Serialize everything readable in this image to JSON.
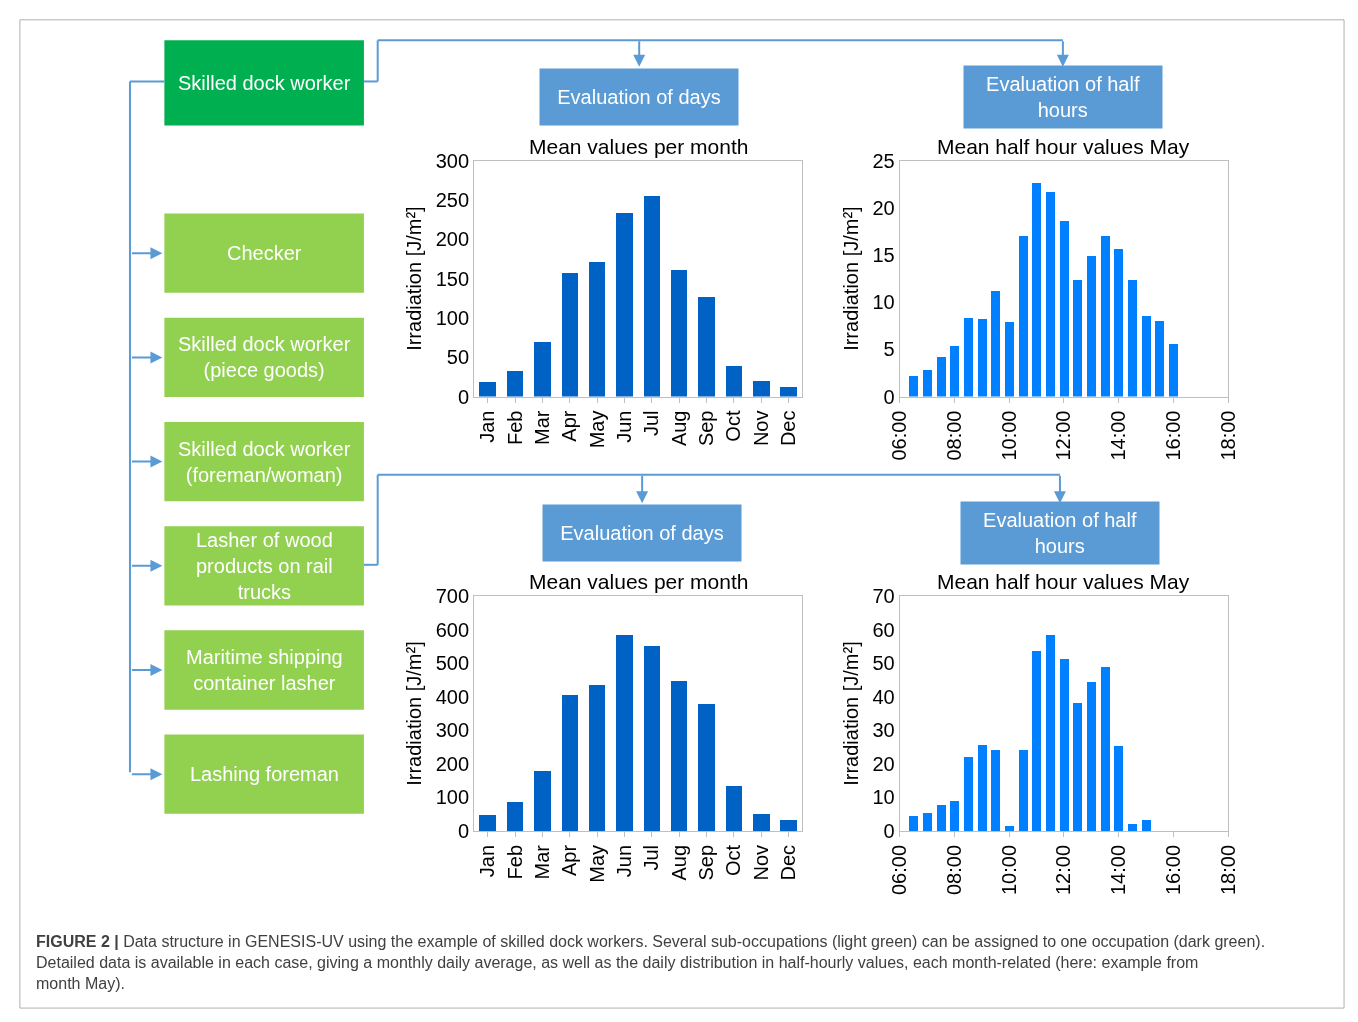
{
  "chart_data": [
    {
      "type": "other",
      "annotations": [
        "Skilled dock worker",
        "Checker",
        "Skilled dock worker (piece goods)",
        "Skilled dock worker (foreman/woman)",
        "Lasher of wood products on rail trucks",
        "Maritime shipping container lasher",
        "Lashing foreman",
        "FIGURE 2 |",
        "Data structure in GENESIS-UV using the example of skilled dock workers. Several sub-occupations (light green) can be assigned to one occupation (dark green). Detailed data is available in each case, giving a monthly daily average, as well as the daily distribution in half-hourly values, each month-related (here: example from month May)."
      ]
    },
    {
      "type": "bar",
      "subtitle": "Evaluation of days",
      "title": "Mean values per month",
      "ylabel": "Irradiation [J/m²]",
      "color": "#0062c4",
      "categories": [
        "Jan",
        "Feb",
        "Mar",
        "Apr",
        "May",
        "Jun",
        "Jul",
        "Aug",
        "Sep",
        "Oct",
        "Nov",
        "Dec"
      ],
      "values": [
        19,
        33,
        70,
        158,
        172,
        234,
        255,
        161,
        127,
        39,
        20,
        13
      ],
      "ylim": [
        0,
        300
      ],
      "yticks": [
        0,
        50,
        100,
        150,
        200,
        250,
        300
      ],
      "grid": false
    },
    {
      "type": "bar",
      "subtitle": "Evaluation of half hours",
      "title": "Mean half hour values May",
      "ylabel": "Irradiation [J/m²]",
      "color": "#0080ff",
      "x": [
        6.5,
        7,
        7.5,
        8,
        8.5,
        9,
        9.5,
        10,
        10.5,
        11,
        11.5,
        12,
        12.5,
        13,
        13.5,
        14,
        14.5,
        15,
        15.5,
        16
      ],
      "values": [
        2.2,
        2.8,
        4.2,
        5.4,
        8.4,
        8.3,
        11.2,
        7.9,
        17,
        22.7,
        21.7,
        18.6,
        12.4,
        14.9,
        17.1,
        15.7,
        12.4,
        8.6,
        8.0,
        5.6
      ],
      "xlim": [
        6,
        18
      ],
      "xticks": [
        {
          "value": 6,
          "label": "06:00"
        },
        {
          "value": 8,
          "label": "08:00"
        },
        {
          "value": 10,
          "label": "10:00"
        },
        {
          "value": 12,
          "label": "12:00"
        },
        {
          "value": 14,
          "label": "14:00"
        },
        {
          "value": 16,
          "label": "16:00"
        },
        {
          "value": 18,
          "label": "18:00"
        }
      ],
      "ylim": [
        0,
        25
      ],
      "yticks": [
        0,
        5,
        10,
        15,
        20,
        25
      ],
      "grid": false
    },
    {
      "type": "bar",
      "subtitle": "Evaluation of days",
      "title": "Mean values per month",
      "ylabel": "Irradiation [J/m²]",
      "color": "#0062c4",
      "categories": [
        "Jan",
        "Feb",
        "Mar",
        "Apr",
        "May",
        "Jun",
        "Jul",
        "Aug",
        "Sep",
        "Oct",
        "Nov",
        "Dec"
      ],
      "values": [
        48,
        85,
        178,
        405,
        436,
        584,
        551,
        448,
        379,
        133,
        51,
        32
      ],
      "ylim": [
        0,
        700
      ],
      "yticks": [
        0,
        100,
        200,
        300,
        400,
        500,
        600,
        700
      ],
      "grid": false
    },
    {
      "type": "bar",
      "subtitle": "Evaluation of half hours",
      "title": "Mean half hour values May",
      "ylabel": "Irradiation [J/m²]",
      "color": "#0080ff",
      "x": [
        6.5,
        7,
        7.5,
        8,
        8.5,
        9,
        9.5,
        10,
        10.5,
        11,
        11.5,
        12,
        12.5,
        13,
        13.5,
        14,
        14.5,
        15
      ],
      "values": [
        4.5,
        5.4,
        7.6,
        8.9,
        22,
        25.5,
        24.2,
        1.3,
        24.2,
        53.6,
        58.4,
        51.2,
        38,
        44.4,
        48.7,
        25.4,
        2.1,
        3.1
      ],
      "xlim": [
        6,
        18
      ],
      "xticks": [
        {
          "value": 6,
          "label": "06:00"
        },
        {
          "value": 8,
          "label": "08:00"
        },
        {
          "value": 10,
          "label": "10:00"
        },
        {
          "value": 12,
          "label": "12:00"
        },
        {
          "value": 14,
          "label": "14:00"
        },
        {
          "value": 16,
          "label": "16:00"
        },
        {
          "value": 18,
          "label": "18:00"
        }
      ],
      "ylim": [
        0,
        70
      ],
      "yticks": [
        0,
        10,
        20,
        30,
        40,
        50,
        60,
        70
      ],
      "grid": false
    }
  ]
}
